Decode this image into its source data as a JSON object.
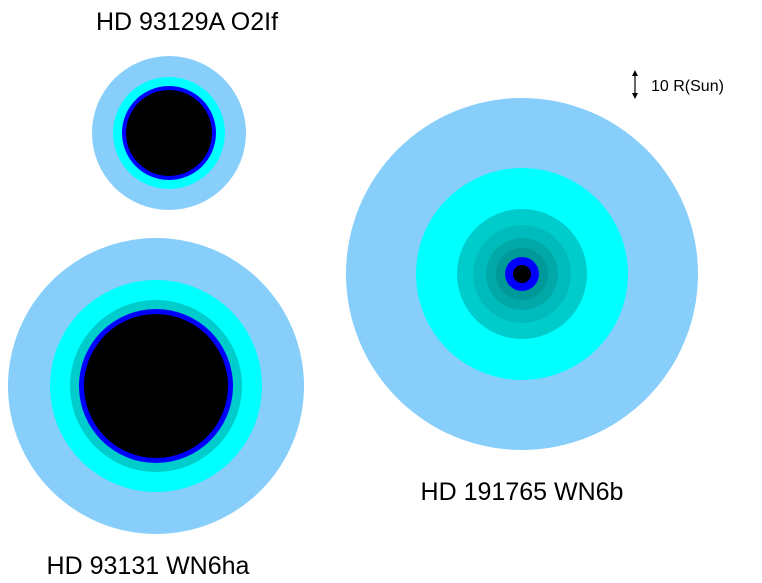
{
  "stars": [
    {
      "label": "HD 93129A O2If"
    },
    {
      "label": "HD 93131 WN6ha"
    },
    {
      "label": "HD 191765 WN6b"
    }
  ],
  "scale": {
    "label": "10 R(Sun)"
  }
}
